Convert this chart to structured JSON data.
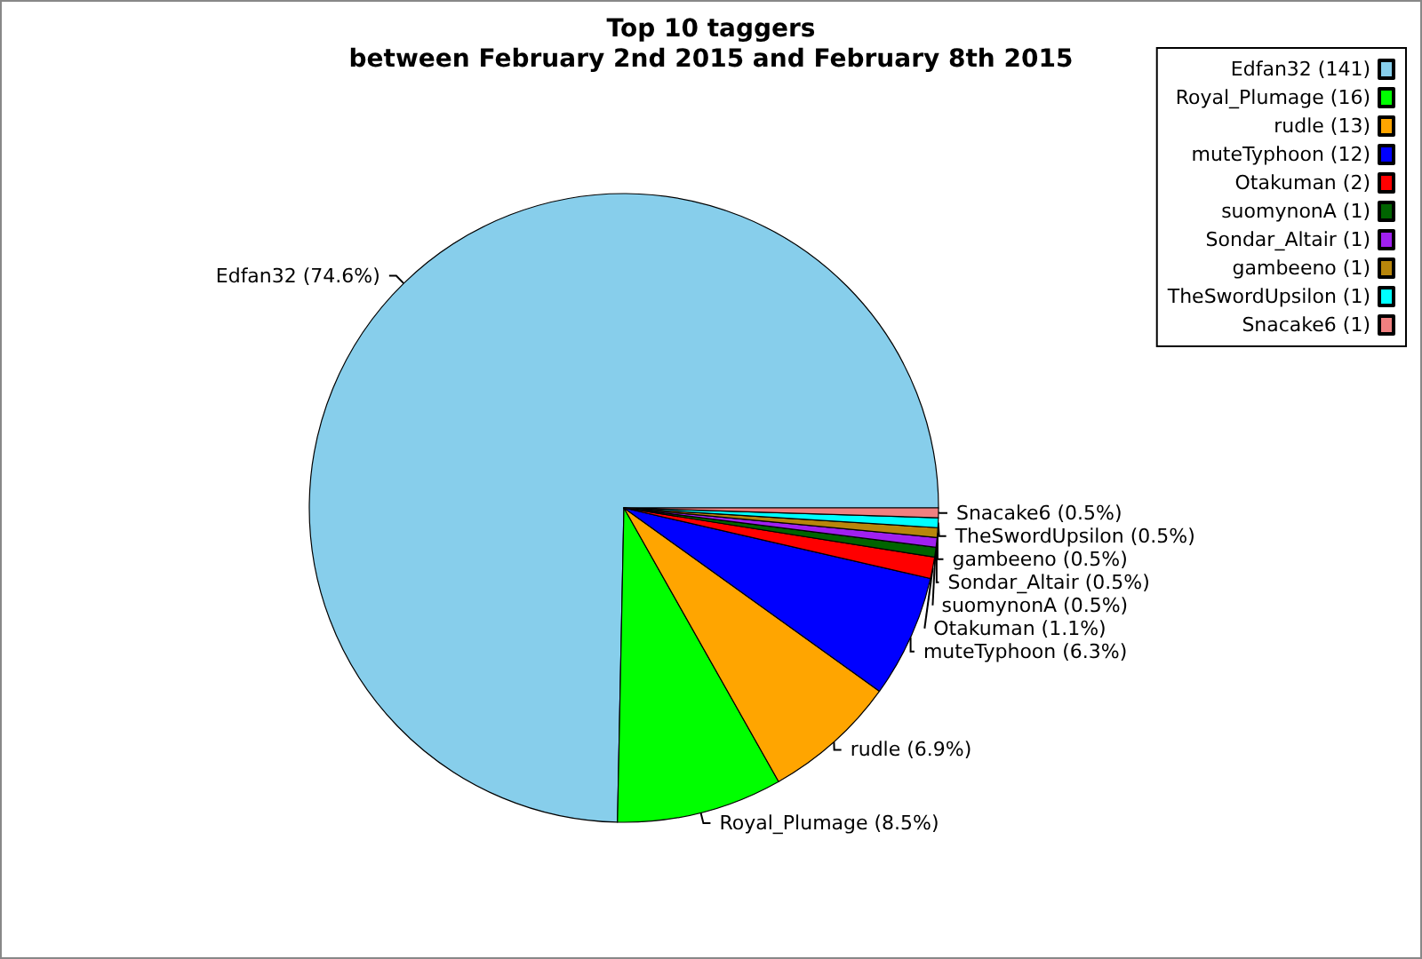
{
  "chart_data": {
    "type": "pie",
    "title": "Top 10 taggers\nbetween February 2nd 2015 and February 8th 2015",
    "categories": [
      "Edfan32 (141)",
      "Royal_Plumage (16)",
      "rudle (13)",
      "muteTyphoon (12)",
      "Otakuman (2)",
      "suomynonA (1)",
      "Sondar_Altair (1)",
      "gambeeno (1)",
      "TheSwordUpsilon (1)",
      "Snacake6 (1)"
    ],
    "values": [
      74.6,
      8.5,
      6.9,
      6.3,
      1.1,
      0.5,
      0.5,
      0.5,
      0.5,
      0.5
    ],
    "value_labels": [
      "Edfan32 (74.6%)",
      "Royal_Plumage (8.5%)",
      "rudle (6.9%)",
      "muteTyphoon (6.3%)",
      "Otakuman (1.1%)",
      "suomynonA (0.5%)",
      "Sondar_Altair (0.5%)",
      "gambeeno (0.5%)",
      "TheSwordUpsilon (0.5%)",
      "Snacake6 (0.5%)"
    ],
    "colors": [
      "#87ceeb",
      "#00ff00",
      "#ffa500",
      "#0000ff",
      "#ff0000",
      "#006400",
      "#a020f0",
      "#b8860b",
      "#00ffff",
      "#f08080"
    ],
    "legend": "top right"
  }
}
